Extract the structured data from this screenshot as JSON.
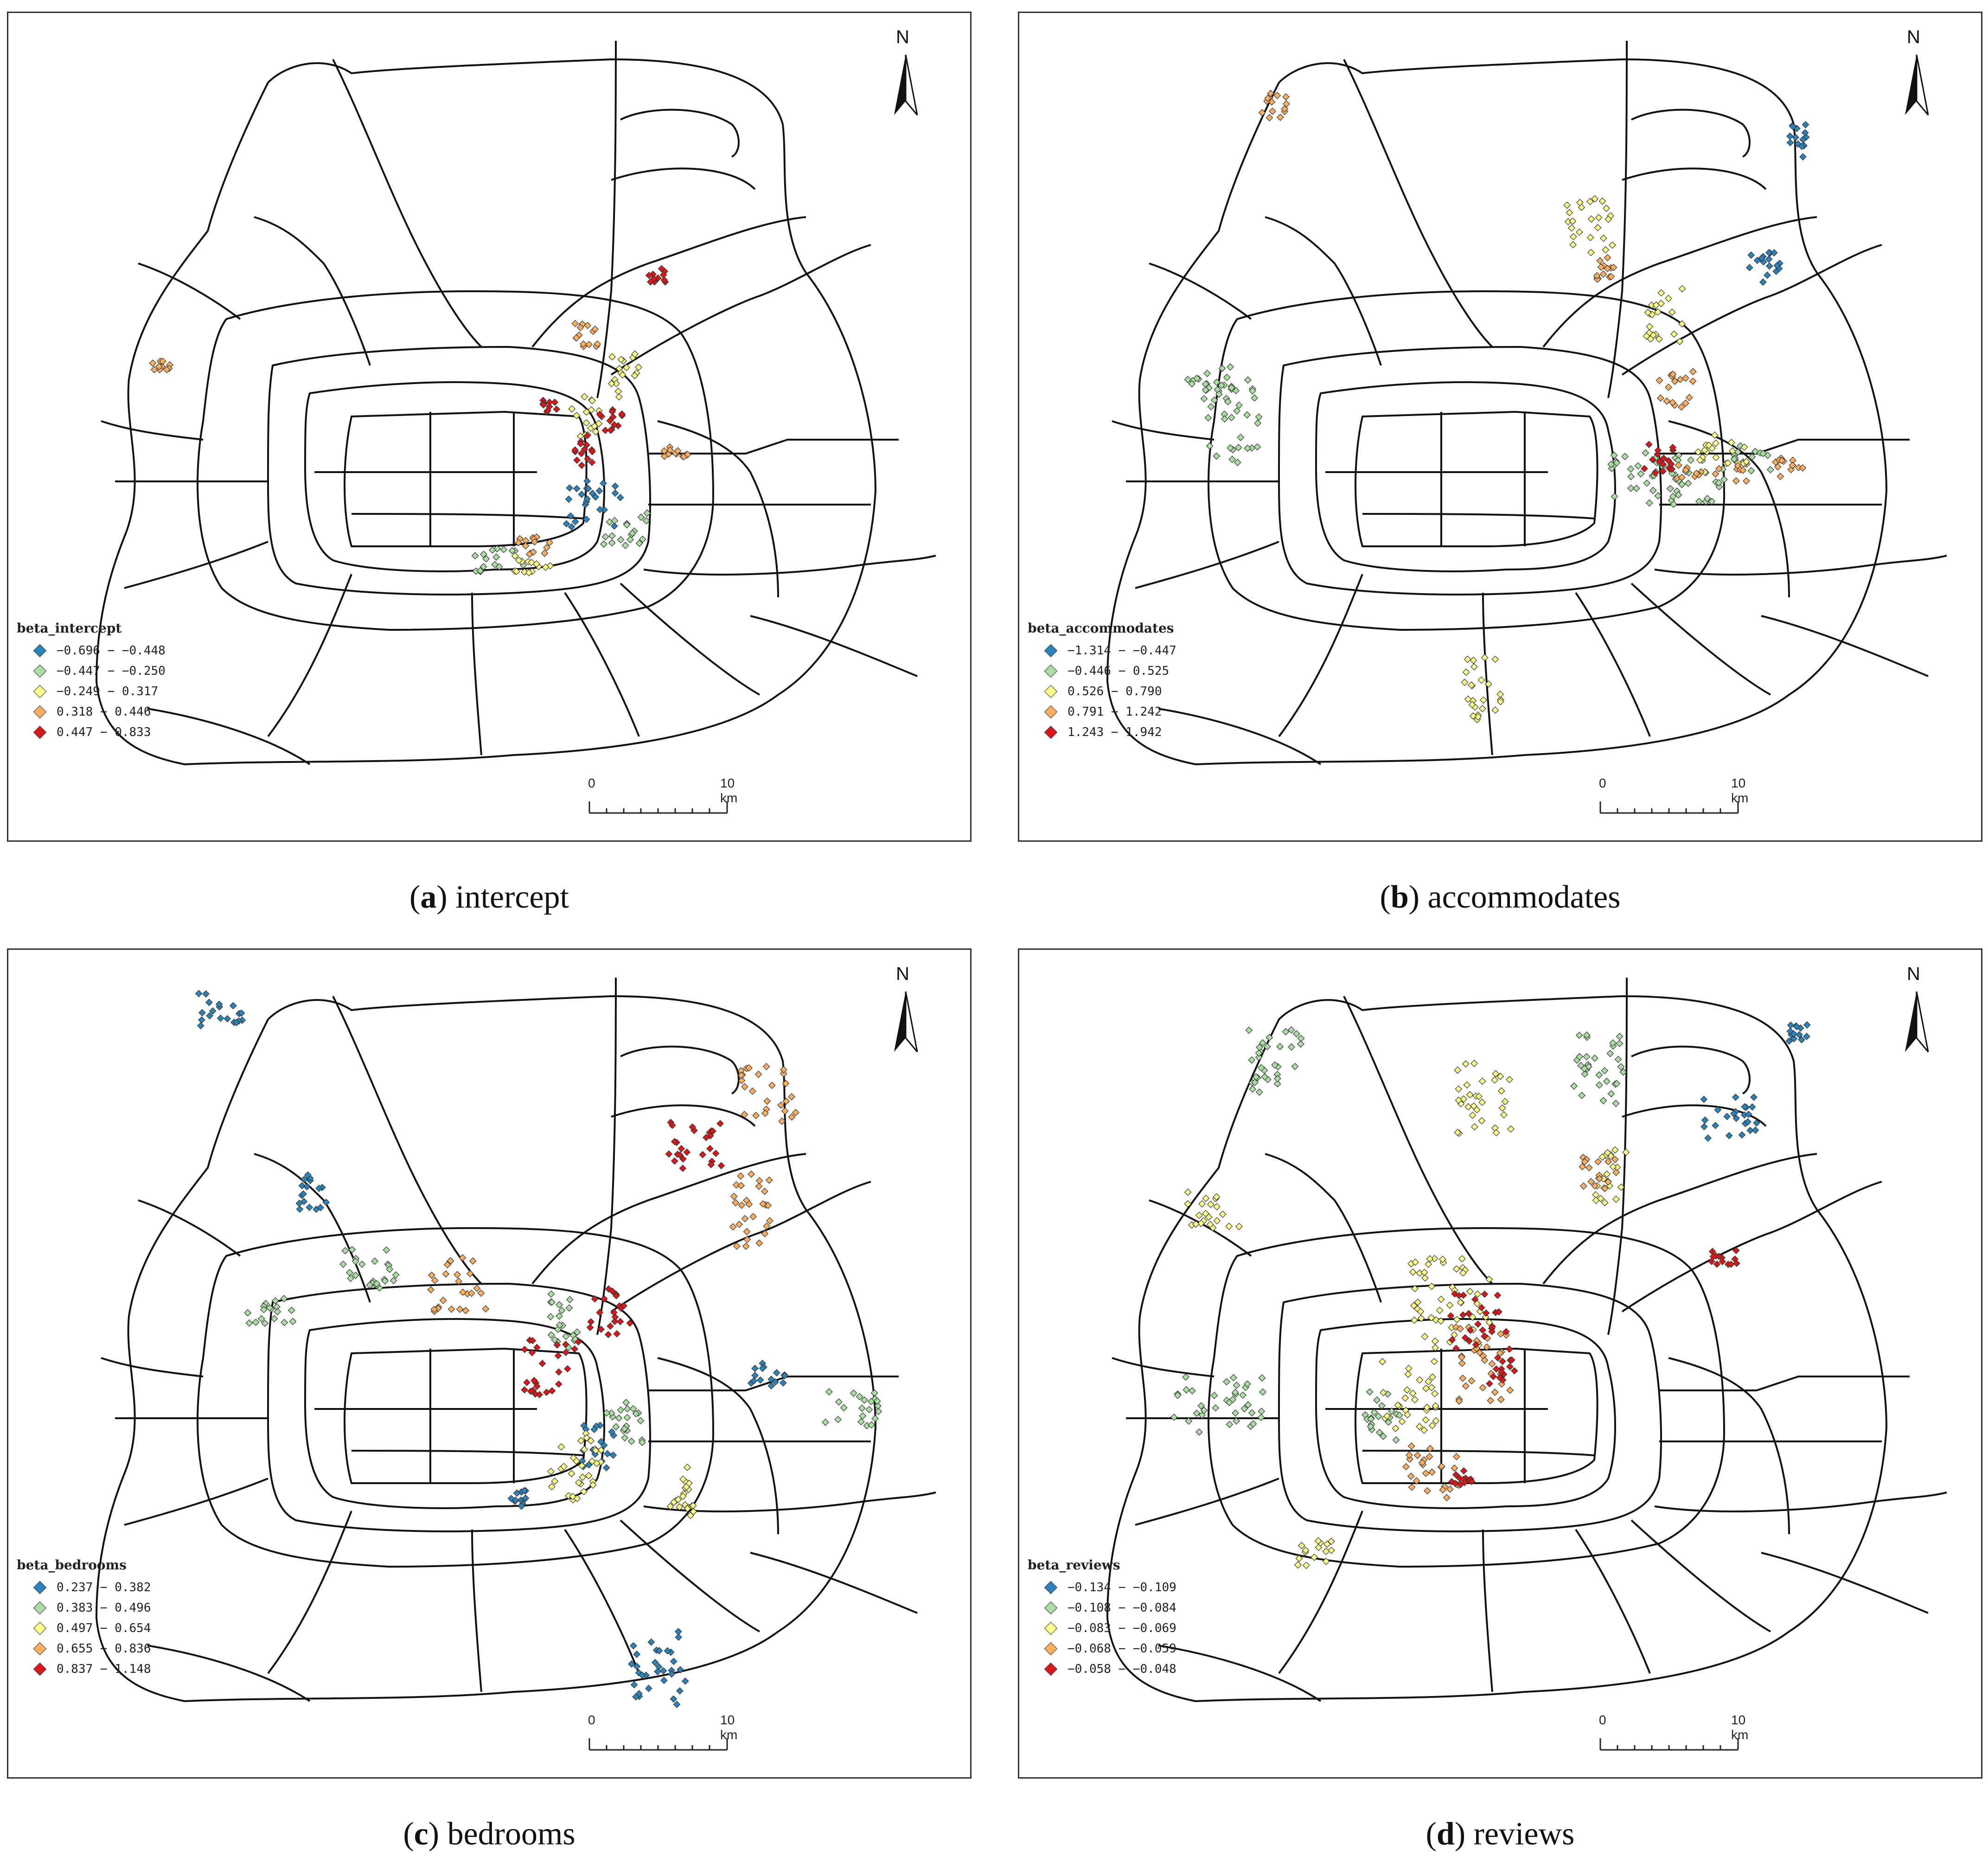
{
  "panels": [
    {
      "id": "a",
      "caption_letter": "a",
      "caption_text": " intercept",
      "legend_title": "beta_intercept",
      "classes": [
        "−0.696 − −0.448",
        "−0.447 − −0.250",
        "−0.249 − 0.317",
        "0.318 − 0.446",
        "0.447 − 0.833"
      ],
      "north_label": "N",
      "scale_start": "0",
      "scale_end": "10 km"
    },
    {
      "id": "b",
      "caption_letter": "b",
      "caption_text": " accommodates",
      "legend_title": "beta_accommodates",
      "classes": [
        "−1.314 − −0.447",
        "−0.446 − 0.525",
        "0.526 − 0.790",
        "0.791 − 1.242",
        "1.243 − 1.942"
      ],
      "north_label": "N",
      "scale_start": "0",
      "scale_end": "10 km"
    },
    {
      "id": "c",
      "caption_letter": "c",
      "caption_text": " bedrooms",
      "legend_title": "beta_bedrooms",
      "classes": [
        "0.237 − 0.382",
        "0.383 − 0.496",
        "0.497 − 0.654",
        "0.655 − 0.836",
        "0.837 − 1.148"
      ],
      "north_label": "N",
      "scale_start": "0",
      "scale_end": "10 km"
    },
    {
      "id": "d",
      "caption_letter": "d",
      "caption_text": " reviews",
      "legend_title": "beta_reviews",
      "classes": [
        "−0.134 − −0.109",
        "−0.108 − −0.084",
        "−0.083 − −0.069",
        "−0.068 − −0.059",
        "−0.058 − −0.048"
      ],
      "north_label": "N",
      "scale_start": "0",
      "scale_end": "10 km"
    }
  ],
  "class_colors": [
    "#2b83ba",
    "#abdda4",
    "#ffff8c",
    "#fdae61",
    "#d7191c"
  ]
}
